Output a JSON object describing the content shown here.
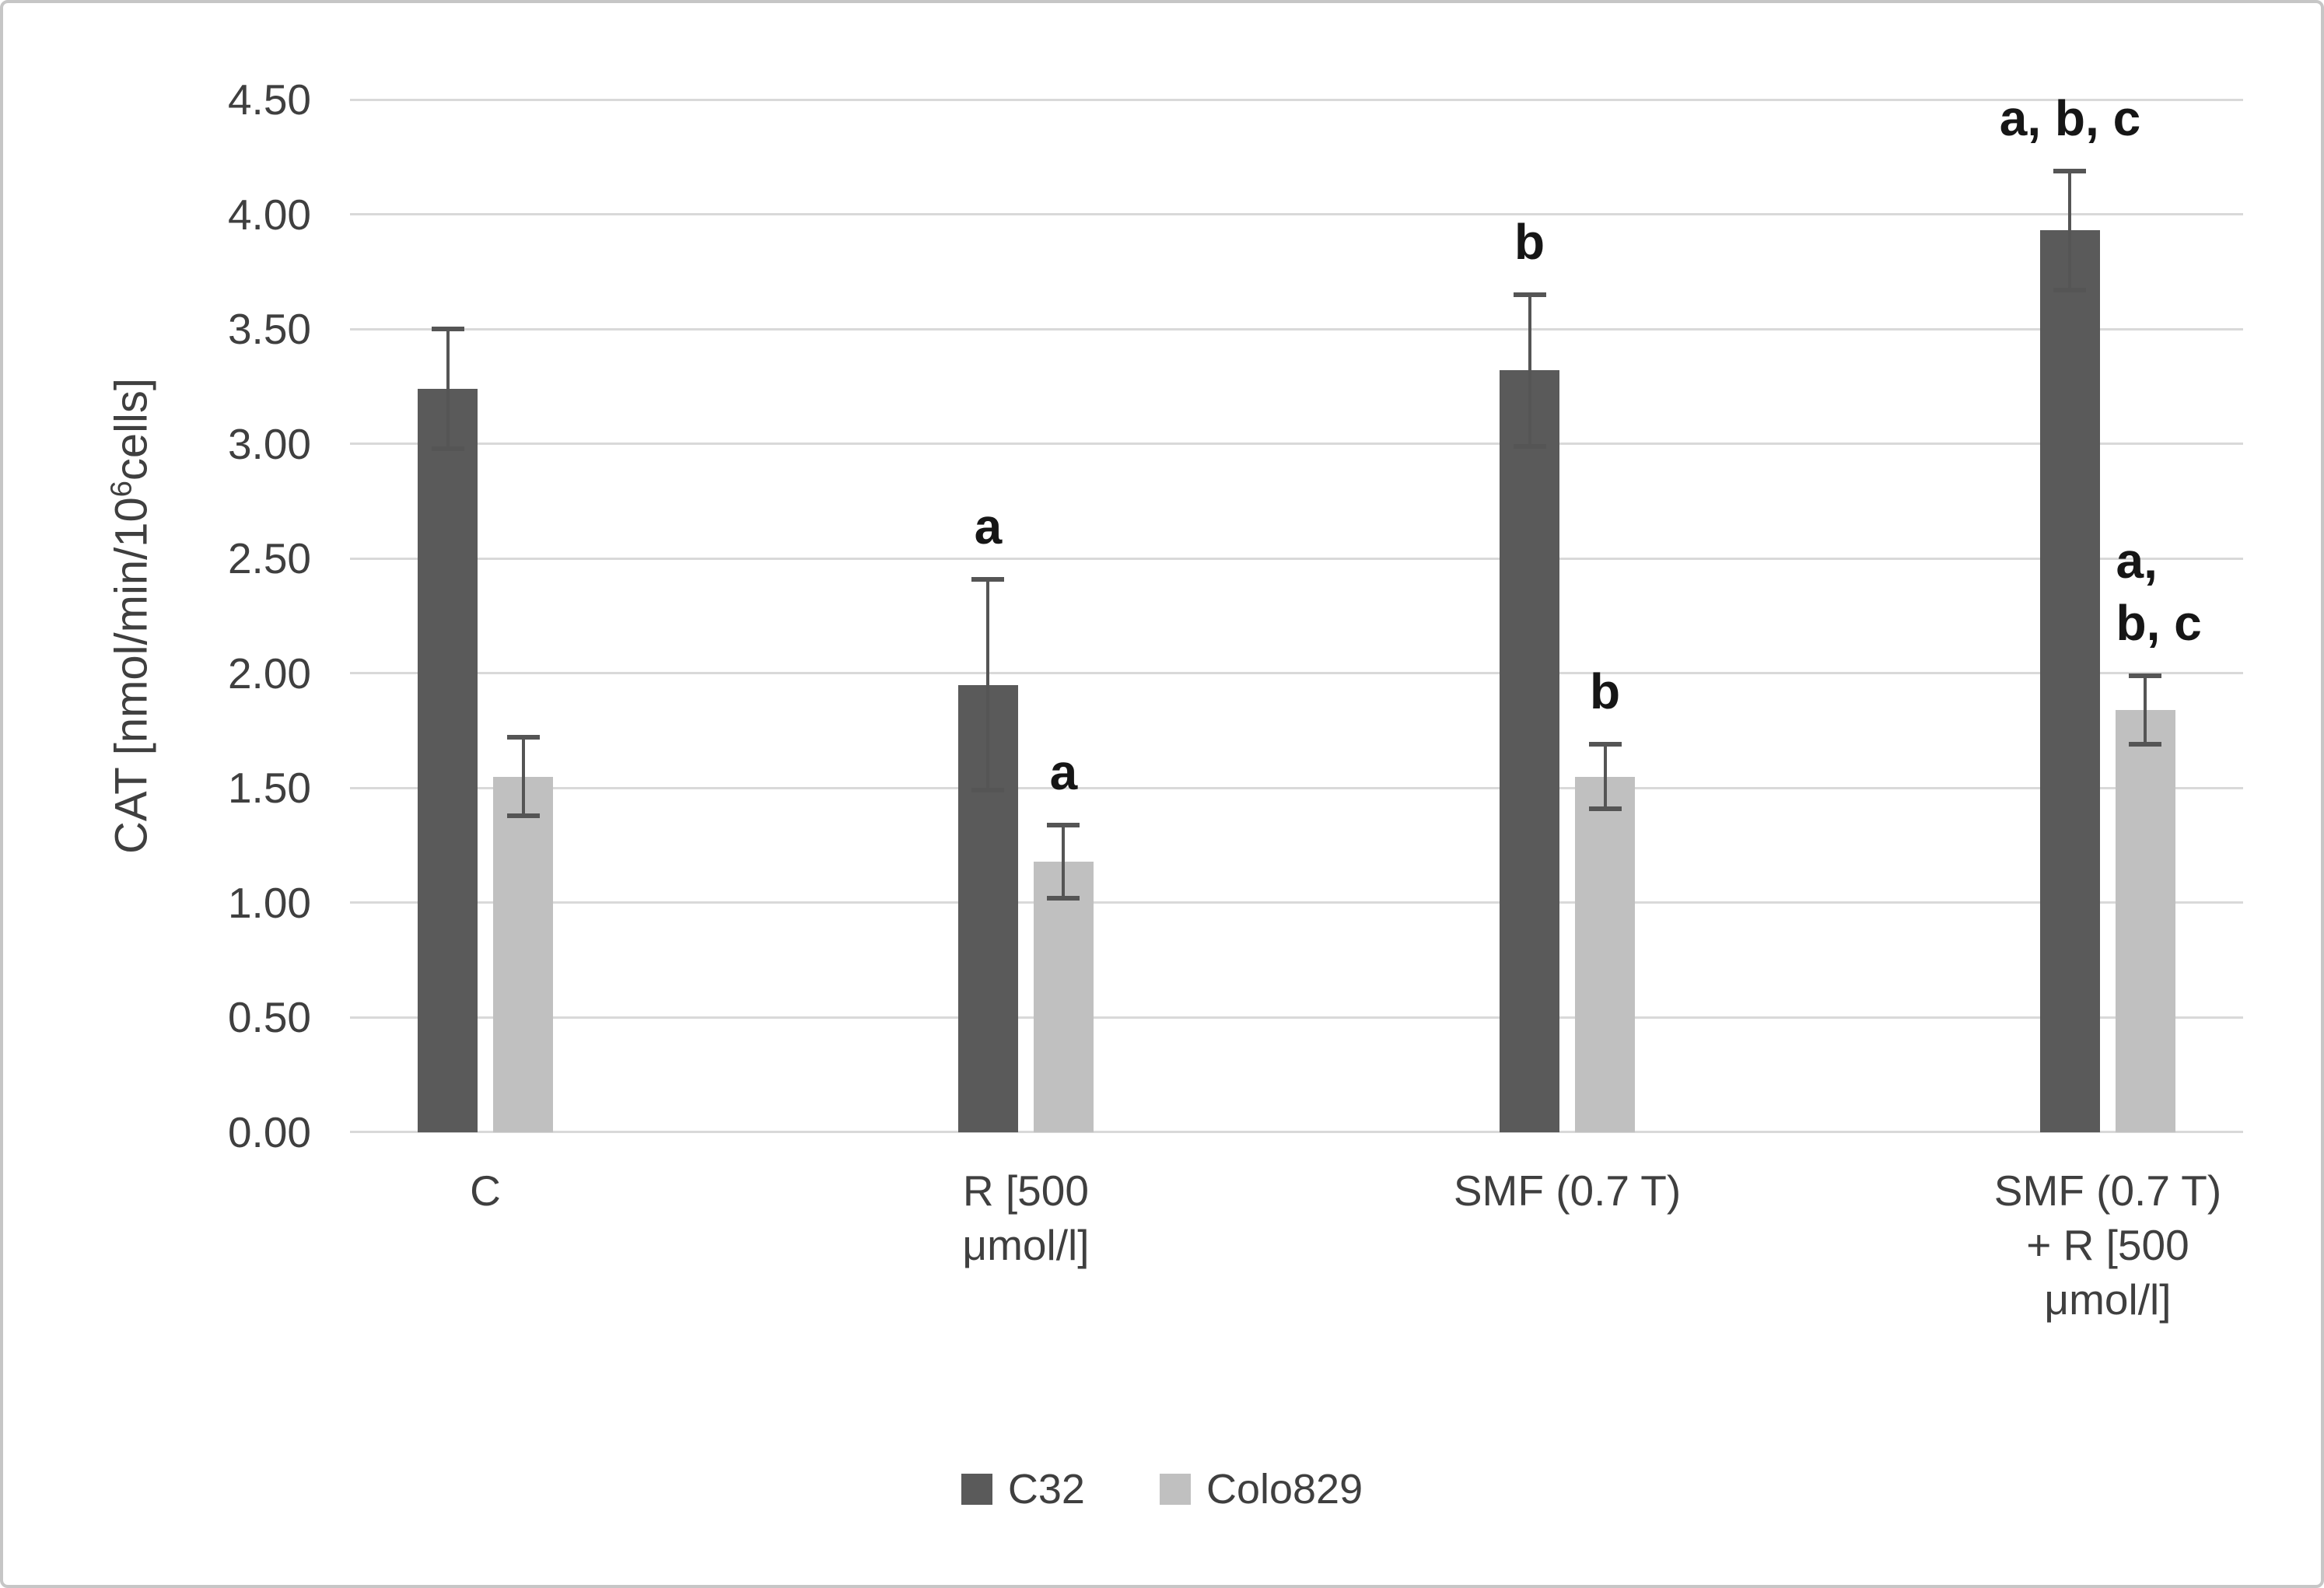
{
  "chart_data": {
    "type": "bar",
    "title": "",
    "xlabel": "",
    "ylabel": "CAT [nmol/min/10⁶cells]",
    "ylabel_parts": {
      "prefix": "CAT [nmol/min/10",
      "superscript": "6",
      "suffix": "cells]"
    },
    "categories": [
      "C",
      "R [500 μmol/l]",
      "SMF (0.7 T)",
      "SMF (0.7 T) + R [500 μmol/l]"
    ],
    "category_label_lines": [
      [
        "C"
      ],
      [
        "R [500",
        "μmol/l]"
      ],
      [
        "SMF (0.7 T)"
      ],
      [
        "SMF (0.7 T)",
        "+ R [500",
        "μmol/l]"
      ]
    ],
    "series": [
      {
        "name": "C32",
        "color": "#5a5a5a",
        "values": [
          3.24,
          1.95,
          3.32,
          3.93
        ],
        "errors": [
          0.26,
          0.46,
          0.33,
          0.26
        ],
        "annotations": [
          null,
          "a",
          "b",
          "a, b, c"
        ]
      },
      {
        "name": "Colo829",
        "color": "#c0c0c0",
        "values": [
          1.55,
          1.18,
          1.55,
          1.84
        ],
        "errors": [
          0.17,
          0.16,
          0.14,
          0.15
        ],
        "annotations": [
          null,
          "a",
          "b",
          [
            "a,",
            "b, c"
          ]
        ]
      }
    ],
    "ylim": [
      0,
      4.5
    ],
    "ytick_step": 0.5,
    "ytick_labels": [
      "0.00",
      "0.50",
      "1.00",
      "1.50",
      "2.00",
      "2.50",
      "3.00",
      "3.50",
      "4.00",
      "4.50"
    ],
    "grid": true,
    "error_bars": "two-sided",
    "legend_position": "bottom-center"
  },
  "colors": {
    "background": "#ffffff",
    "border": "#c6c6c6",
    "gridline": "#d9d9d9",
    "text": "#3f3f3f",
    "annotation_text": "#161616",
    "error_bar": "#555555",
    "series_c32": "#5a5a5a",
    "series_colo829": "#c0c0c0"
  }
}
